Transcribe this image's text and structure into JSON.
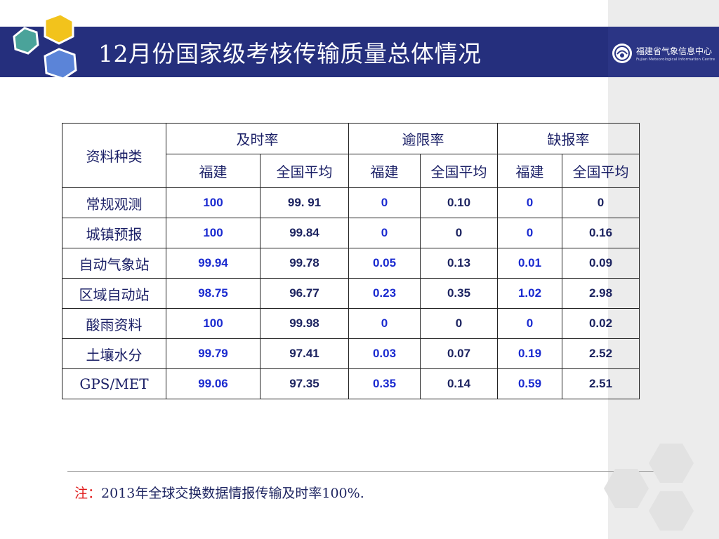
{
  "title": "12月份国家级考核传输质量总体情况",
  "logo": {
    "name_cn": "福建省气象信息中心",
    "name_en": "Fujian Meteorological Information Centre"
  },
  "table": {
    "row_header": "资料种类",
    "groups": [
      "及时率",
      "逾限率",
      "缺报率"
    ],
    "subheaders": [
      "福建",
      "全国平均",
      "福建",
      "全国平均",
      "福建",
      "全国平均"
    ],
    "rows": [
      {
        "label": "常规观测",
        "values": [
          "100",
          "99. 91",
          "0",
          "0.10",
          "0",
          "0"
        ]
      },
      {
        "label": "城镇预报",
        "values": [
          "100",
          "99.84",
          "0",
          "0",
          "0",
          "0.16"
        ]
      },
      {
        "label": "自动气象站",
        "values": [
          "99.94",
          "99.78",
          "0.05",
          "0.13",
          "0.01",
          "0.09"
        ]
      },
      {
        "label": "区域自动站",
        "values": [
          "98.75",
          "96.77",
          "0.23",
          "0.35",
          "1.02",
          "2.98"
        ]
      },
      {
        "label": "酸雨资料",
        "values": [
          "100",
          "99.98",
          "0",
          "0",
          "0",
          "0.02"
        ]
      },
      {
        "label": "土壤水分",
        "values": [
          "99.79",
          "97.41",
          "0.03",
          "0.07",
          "0.19",
          "2.52"
        ]
      },
      {
        "label": "GPS/MET",
        "values": [
          "99.06",
          "97.35",
          "0.35",
          "0.14",
          "0.59",
          "2.51"
        ]
      }
    ]
  },
  "note": {
    "prefix": "注：",
    "text": "2013年全球交换数据情报传输及时率100%."
  },
  "colors": {
    "title_bar": "#252f7d",
    "fujian_value": "#1a2ad0",
    "national_value": "#1c2360",
    "note_prefix": "#e01a1a"
  }
}
